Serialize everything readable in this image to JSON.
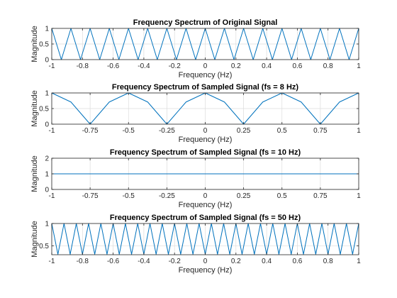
{
  "colors": {
    "series": "#0072BD",
    "grid": "#dcdcdc",
    "axes": "#262626"
  },
  "chart_data": [
    {
      "type": "line",
      "title": "Frequency Spectrum of Original Signal",
      "xlabel": "Frequency (Hz)",
      "ylabel": "Magnitude",
      "xlim": [
        -1,
        1
      ],
      "ylim": [
        0,
        1
      ],
      "xticks": [
        -1,
        -0.8,
        -0.6,
        -0.4,
        -0.2,
        0,
        0.2,
        0.4,
        0.6,
        0.8,
        1
      ],
      "xticklabels": [
        "-1",
        "-0.8",
        "-0.6",
        "-0.4",
        "-0.2",
        "0",
        "0.2",
        "0.4",
        "0.6",
        "0.8",
        "1"
      ],
      "yticks": [
        0,
        0.5,
        1
      ],
      "yticklabels": [
        "0",
        "0.5",
        "1"
      ],
      "grid": true,
      "series": [
        {
          "x": [
            -1,
            -0.9375,
            -0.875,
            -0.8125,
            -0.75,
            -0.6875,
            -0.625,
            -0.5625,
            -0.5,
            -0.4375,
            -0.375,
            -0.3125,
            -0.25,
            -0.1875,
            -0.125,
            -0.0625,
            0,
            0.0625,
            0.125,
            0.1875,
            0.25,
            0.3125,
            0.375,
            0.4375,
            0.5,
            0.5625,
            0.625,
            0.6875,
            0.75,
            0.8125,
            0.875,
            0.9375,
            1
          ],
          "y": [
            1,
            0,
            1,
            0,
            1,
            0,
            1,
            0,
            1,
            0,
            1,
            0,
            1,
            0,
            1,
            0,
            1,
            0,
            1,
            0,
            1,
            0,
            1,
            0,
            1,
            0,
            1,
            0,
            1,
            0,
            1,
            0,
            1
          ]
        }
      ]
    },
    {
      "type": "line",
      "title": "Frequency Spectrum of Sampled Signal (fs = 8 Hz)",
      "xlabel": "Frequency (Hz)",
      "ylabel": "Magnitude",
      "xlim": [
        -1,
        1
      ],
      "ylim": [
        0,
        1
      ],
      "xticks": [
        -1,
        -0.75,
        -0.5,
        -0.25,
        0,
        0.25,
        0.5,
        0.75,
        1
      ],
      "xticklabels": [
        "-1",
        "-0.75",
        "-0.5",
        "-0.25",
        "0",
        "0.25",
        "0.5",
        "0.75",
        "1"
      ],
      "yticks": [
        0,
        0.5,
        1
      ],
      "yticklabels": [
        "0",
        "0.5",
        "1"
      ],
      "grid": true,
      "series": [
        {
          "x": [
            -1,
            -0.875,
            -0.75,
            -0.625,
            -0.5,
            -0.375,
            -0.25,
            -0.125,
            0,
            0.125,
            0.25,
            0.375,
            0.5,
            0.625,
            0.75,
            0.875,
            1
          ],
          "y": [
            1,
            0.71,
            0,
            0.71,
            1,
            0.71,
            0,
            0.71,
            1,
            0.71,
            0,
            0.71,
            1,
            0.71,
            0,
            0.71,
            1
          ]
        }
      ]
    },
    {
      "type": "line",
      "title": "Frequency Spectrum of Sampled Signal (fs = 10 Hz)",
      "xlabel": "Frequency (Hz)",
      "ylabel": "Magnitude",
      "xlim": [
        -1,
        1
      ],
      "ylim": [
        0,
        2
      ],
      "xticks": [
        -1,
        -0.75,
        -0.5,
        -0.25,
        0,
        0.25,
        0.5,
        0.75,
        1
      ],
      "xticklabels": [
        "-1",
        "-0.75",
        "-0.5",
        "-0.25",
        "0",
        "0.25",
        "0.5",
        "0.75",
        "1"
      ],
      "yticks": [
        0,
        1,
        2
      ],
      "yticklabels": [
        "0",
        "1",
        "2"
      ],
      "grid": true,
      "series": [
        {
          "x": [
            -1,
            1
          ],
          "y": [
            1,
            1
          ]
        }
      ]
    },
    {
      "type": "line",
      "title": "Frequency Spectrum of Sampled Signal (fs = 50 Hz)",
      "xlabel": "Frequency (Hz)",
      "ylabel": "Magnitude",
      "xlim": [
        -1,
        1
      ],
      "ylim": [
        0.3,
        1
      ],
      "xticks": [
        -1,
        -0.8,
        -0.6,
        -0.4,
        -0.2,
        0,
        0.2,
        0.4,
        0.6,
        0.8,
        1
      ],
      "xticklabels": [
        "-1",
        "-0.8",
        "-0.6",
        "-0.4",
        "-0.2",
        "0",
        "0.2",
        "0.4",
        "0.6",
        "0.8",
        "1"
      ],
      "yticks": [
        0.5,
        1
      ],
      "yticklabels": [
        "0.5",
        "1"
      ],
      "grid": true,
      "series": [
        {
          "x": [
            -1,
            -0.96,
            -0.92,
            -0.88,
            -0.84,
            -0.8,
            -0.76,
            -0.72,
            -0.68,
            -0.64,
            -0.6,
            -0.56,
            -0.52,
            -0.48,
            -0.44,
            -0.4,
            -0.36,
            -0.32,
            -0.28,
            -0.24,
            -0.2,
            -0.16,
            -0.12,
            -0.08,
            -0.04,
            0,
            0.04,
            0.08,
            0.12,
            0.16,
            0.2,
            0.24,
            0.28,
            0.32,
            0.36,
            0.4,
            0.44,
            0.48,
            0.52,
            0.56,
            0.6,
            0.64,
            0.68,
            0.72,
            0.76,
            0.8,
            0.84,
            0.88,
            0.92,
            0.96,
            1
          ],
          "y": [
            1,
            0.31,
            1,
            0.31,
            1,
            0.31,
            1,
            0.31,
            1,
            0.31,
            1,
            0.31,
            1,
            0.31,
            1,
            0.31,
            1,
            0.31,
            1,
            0.31,
            1,
            0.31,
            1,
            0.31,
            1,
            0.31,
            1,
            0.31,
            1,
            0.31,
            1,
            0.31,
            1,
            0.31,
            1,
            0.31,
            1,
            0.31,
            1,
            0.31,
            1,
            0.31,
            1,
            0.31,
            1,
            0.31,
            1,
            0.31,
            1,
            0.31,
            1
          ]
        }
      ]
    }
  ]
}
